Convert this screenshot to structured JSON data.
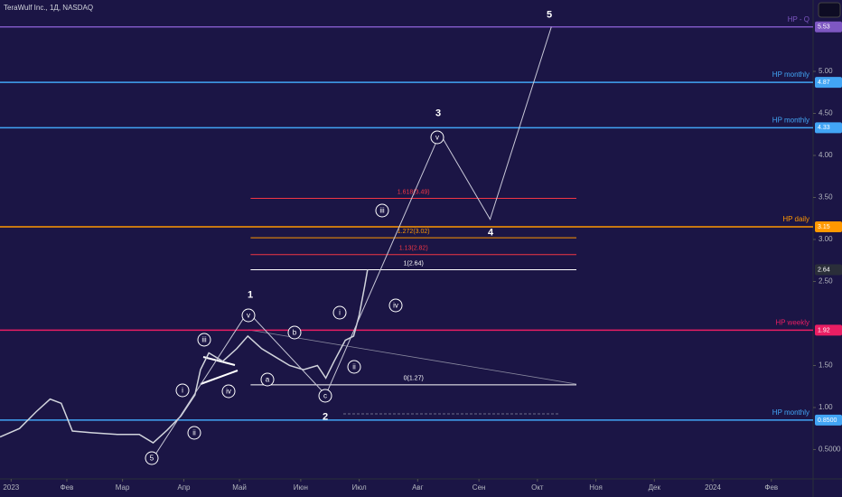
{
  "chart_data": {
    "type": "line",
    "title": "TeraWulf Inc., 1Д, NASDAQ",
    "color": "#d1d4dc",
    "x": [
      -4,
      3,
      9,
      14,
      18,
      22,
      29,
      38,
      46,
      51,
      56,
      61,
      66,
      68,
      71,
      76,
      81,
      85,
      90,
      95,
      100,
      105,
      110,
      113,
      116,
      120,
      123,
      125,
      127,
      128
    ],
    "values": [
      0.65,
      0.75,
      0.95,
      1.1,
      1.05,
      0.72,
      0.7,
      0.68,
      0.68,
      0.58,
      0.73,
      0.9,
      1.15,
      1.45,
      1.65,
      1.55,
      1.7,
      1.85,
      1.7,
      1.6,
      1.5,
      1.45,
      1.5,
      1.35,
      1.55,
      1.8,
      1.85,
      2.1,
      2.45,
      2.64
    ],
    "xlim": [
      -4,
      288
    ],
    "xticks": [
      {
        "value": 0,
        "label": "2023"
      },
      {
        "value": 20,
        "label": "Фев"
      },
      {
        "value": 40,
        "label": "Мар"
      },
      {
        "value": 62,
        "label": "Апр"
      },
      {
        "value": 82,
        "label": "Май"
      },
      {
        "value": 104,
        "label": "Июн"
      },
      {
        "value": 125,
        "label": "Июл"
      },
      {
        "value": 146,
        "label": "Авг"
      },
      {
        "value": 168,
        "label": "Сен"
      },
      {
        "value": 189,
        "label": "Окт"
      },
      {
        "value": 210,
        "label": "Ноя"
      },
      {
        "value": 231,
        "label": "Дек"
      },
      {
        "value": 252,
        "label": "2024"
      },
      {
        "value": 273,
        "label": "Фев"
      }
    ],
    "ylim": [
      0.15,
      5.85
    ],
    "yticks": [
      {
        "value": 0.5,
        "label": "0.5000"
      },
      {
        "value": 1,
        "label": "1.00"
      },
      {
        "value": 1.5,
        "label": "1.50"
      },
      {
        "value": 2.5,
        "label": "2.50"
      },
      {
        "value": 3,
        "label": "3.00"
      },
      {
        "value": 3.5,
        "label": "3.50"
      },
      {
        "value": 4,
        "label": "4.00"
      },
      {
        "value": 4.5,
        "label": "4.50"
      },
      {
        "value": 5,
        "label": "5.00"
      }
    ],
    "levels": [
      {
        "name": "HP  -  Q",
        "value": 5.53,
        "color": "#7e57c2"
      },
      {
        "name": "HP   monthly",
        "value": 4.87,
        "color": "#42a5f5"
      },
      {
        "name": "HP   monthly",
        "value": 4.33,
        "color": "#42a5f5"
      },
      {
        "name": "HP   daily",
        "value": 3.15,
        "color": "#ff9800"
      },
      {
        "name": "HP   weekly",
        "value": 1.92,
        "color": "#e91e63"
      },
      {
        "name": "HP   monthly",
        "value": 0.85,
        "value_label": "0.8500",
        "color": "#42a5f5"
      }
    ],
    "fib_x": [
      86,
      203
    ],
    "fib": [
      {
        "label": "1.618(3.49)",
        "value": 3.49,
        "color": "#f23645"
      },
      {
        "label": "1.272(3.02)",
        "value": 3.02,
        "color": "#ff9800"
      },
      {
        "label": "1.13(2.82)",
        "value": 2.82,
        "color": "#f23645"
      },
      {
        "label": "1(2.64)",
        "value": 2.64,
        "color": "#ffffff"
      },
      {
        "label": "0(1.27)",
        "value": 1.27,
        "color": "#ffffff"
      }
    ],
    "wave": {
      "x": [
        51,
        85,
        113,
        154,
        172,
        194
      ],
      "values": [
        0.4,
        2.14,
        1.15,
        4.26,
        3.24,
        5.53
      ]
    },
    "wave_labels": [
      {
        "text": "1"
      },
      {
        "text": "2"
      },
      {
        "text": "3"
      },
      {
        "text": "4"
      },
      {
        "text": "5"
      },
      {
        "text": "5",
        "circled": true
      },
      {
        "text": "i",
        "circled": true
      },
      {
        "text": "ii",
        "circled": true
      },
      {
        "text": "iii",
        "circled": true
      },
      {
        "text": "iv",
        "circled": true
      },
      {
        "text": "v",
        "circled": true
      },
      {
        "text": "a",
        "circled": true
      },
      {
        "text": "b",
        "circled": true
      },
      {
        "text": "c",
        "circled": true
      },
      {
        "text": "i",
        "circled": true
      },
      {
        "text": "ii",
        "circled": true
      },
      {
        "text": "iii",
        "circled": true
      },
      {
        "text": "iv",
        "circled": true
      },
      {
        "text": "v",
        "circled": true
      }
    ]
  }
}
